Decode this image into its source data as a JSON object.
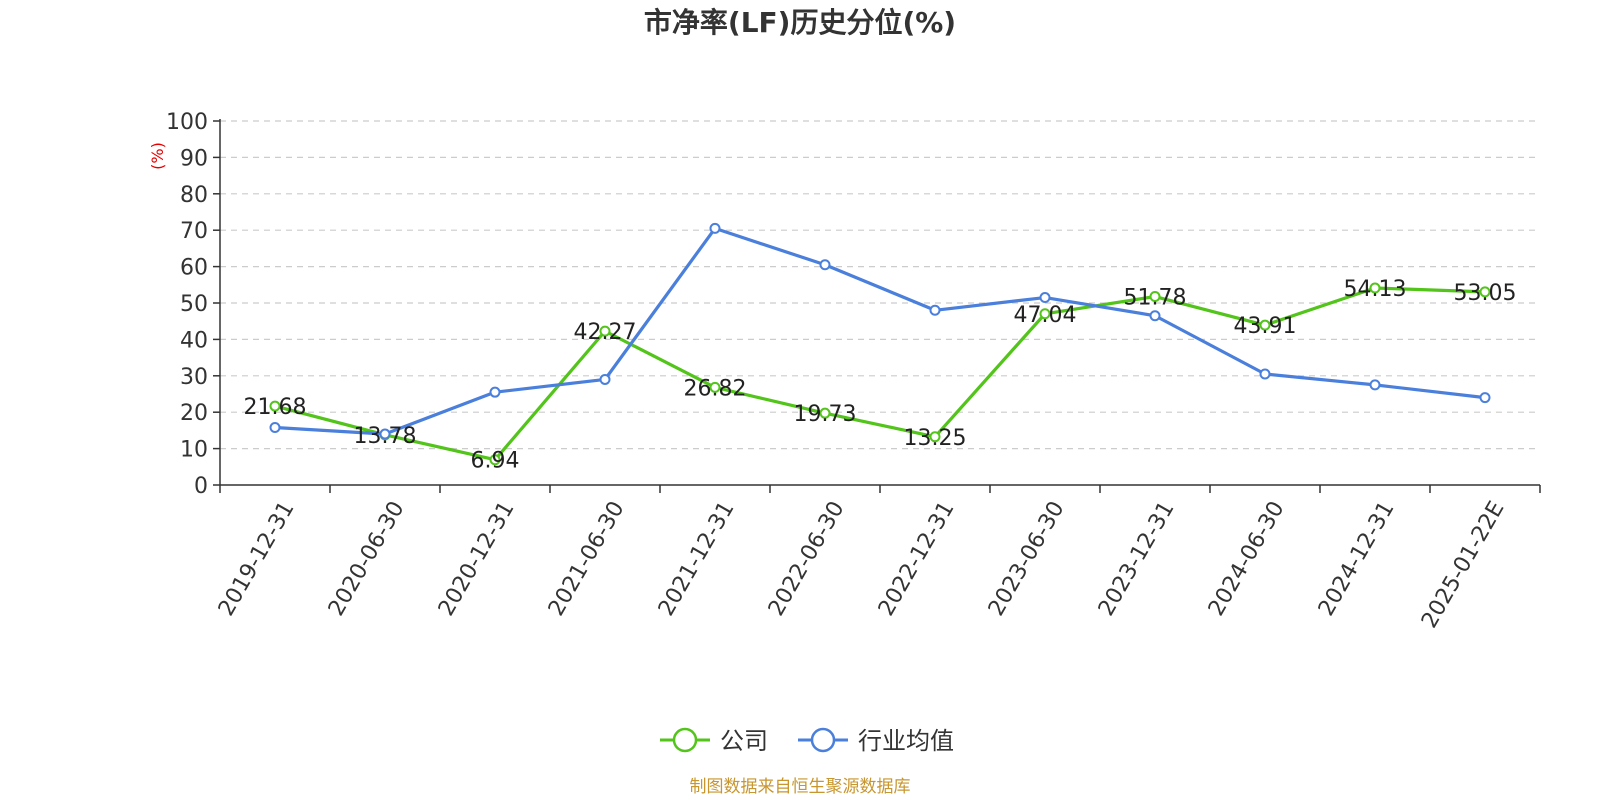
{
  "chart_data": {
    "type": "line",
    "title": "市净率(LF)历史分位(%)",
    "ylabel": "(%)",
    "ylim": [
      0,
      100
    ],
    "yticks": [
      0,
      10,
      20,
      30,
      40,
      50,
      60,
      70,
      80,
      90,
      100
    ],
    "categories": [
      "2019-12-31",
      "2020-06-30",
      "2020-12-31",
      "2021-06-30",
      "2021-12-31",
      "2022-06-30",
      "2022-12-31",
      "2023-06-30",
      "2023-12-31",
      "2024-06-30",
      "2024-12-31",
      "2025-01-22E"
    ],
    "series": [
      {
        "name": "公司",
        "color": "#52c41a",
        "values": [
          21.68,
          13.78,
          6.94,
          42.27,
          26.82,
          19.73,
          13.25,
          47.04,
          51.78,
          43.91,
          54.13,
          53.05
        ],
        "labels": [
          "21.68",
          "13.78",
          "6.94",
          "42.27",
          "26.82",
          "19.73",
          "13.25",
          "47.04",
          "51.78",
          "43.91",
          "54.13",
          "53.05"
        ]
      },
      {
        "name": "行业均值",
        "color": "#4a7fdc",
        "values": [
          15.8,
          14.0,
          25.5,
          29.0,
          70.5,
          60.5,
          48.0,
          51.5,
          46.5,
          30.5,
          27.5,
          24.0
        ]
      }
    ],
    "grid": true,
    "legend_position": "bottom-center",
    "unit_color": "#e60000"
  },
  "footer": {
    "source": "制图数据来自恒生聚源数据库",
    "source_color": "#c8962e"
  }
}
